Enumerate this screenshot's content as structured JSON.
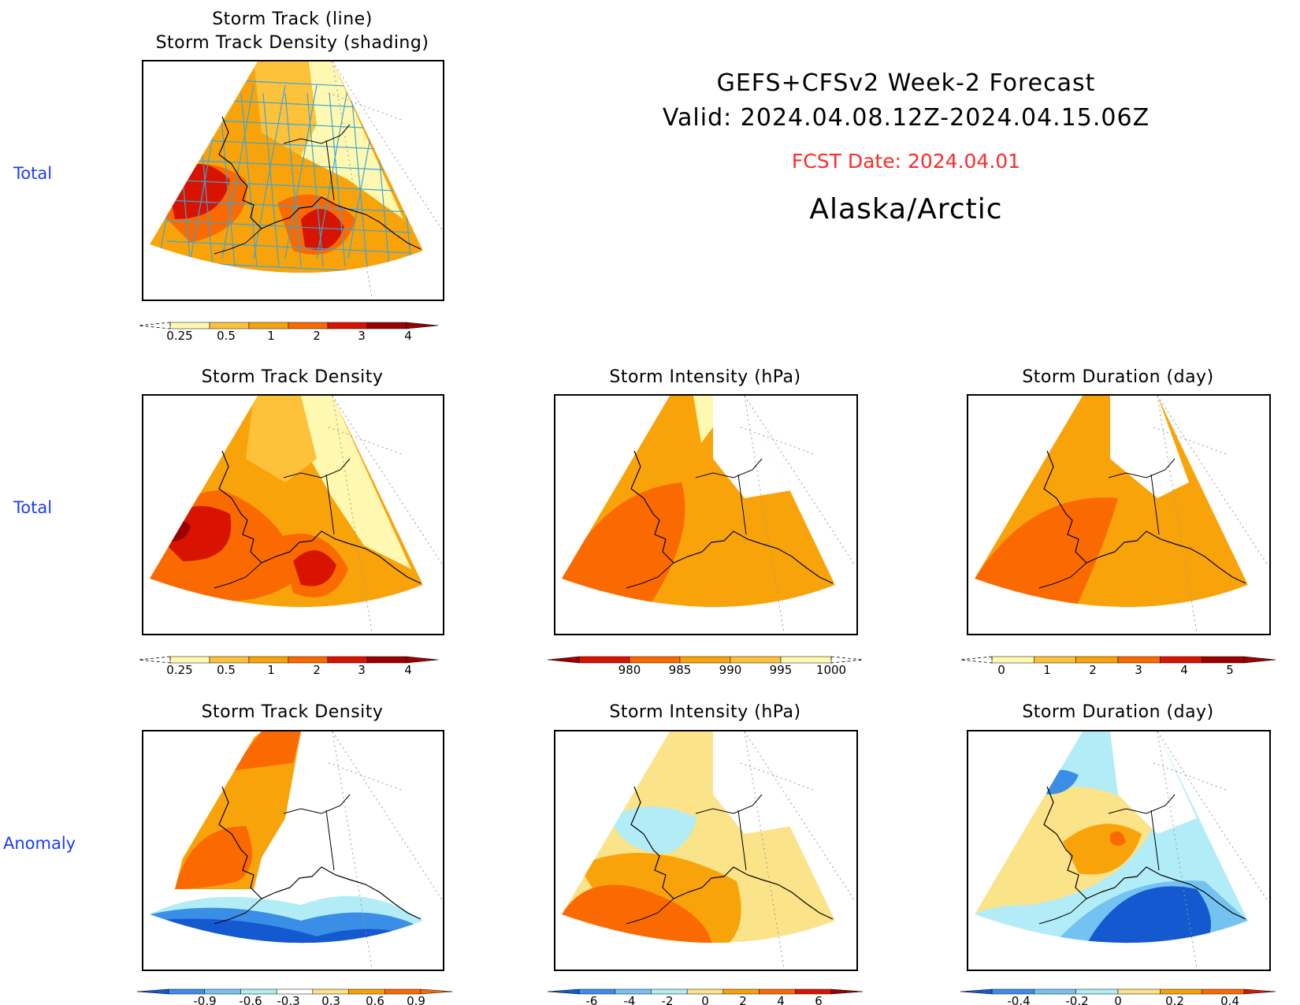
{
  "header": {
    "title": "GEFS+CFSv2 Week-2 Forecast",
    "valid": "Valid: 2024.04.08.12Z-2024.04.15.06Z",
    "fcst_date": "FCST Date: 2024.04.01",
    "region": "Alaska/Arctic"
  },
  "row_labels": {
    "row1": "Total",
    "row2": "Total",
    "row3": "Anomaly"
  },
  "panels": {
    "track": {
      "title_line1": "Storm Track (line)",
      "title_line2": "Storm Track Density (shading)"
    },
    "density_total": {
      "title": "Storm Track Density"
    },
    "intensity_total": {
      "title": "Storm Intensity (hPa)"
    },
    "duration_total": {
      "title": "Storm Duration (day)"
    },
    "density_anom": {
      "title": "Storm Track Density"
    },
    "intensity_anom": {
      "title": "Storm Intensity (hPa)"
    },
    "duration_anom": {
      "title": "Storm Duration (day)"
    }
  },
  "colors": {
    "c1": "#fff8b0",
    "c2": "#fdc23a",
    "c3": "#f9a30a",
    "c4": "#fb6a00",
    "c5": "#d81400",
    "c6": "#9a0000",
    "b1": "#b2ecf6",
    "b2": "#73c2f2",
    "b3": "#3a8ee6",
    "b4": "#1459d0",
    "y1": "#fbe38a",
    "track_line": "#3aa6d8"
  },
  "chart_data": [
    {
      "type": "heatmap",
      "name": "track",
      "colorbar_ticks": [
        "0.25",
        "0.5",
        "1",
        "2",
        "3",
        "4"
      ]
    },
    {
      "type": "heatmap",
      "name": "density_total",
      "colorbar_ticks": [
        "0.25",
        "0.5",
        "1",
        "2",
        "3",
        "4"
      ]
    },
    {
      "type": "heatmap",
      "name": "intensity_total",
      "colorbar_ticks": [
        "980",
        "985",
        "990",
        "995",
        "1000"
      ]
    },
    {
      "type": "heatmap",
      "name": "duration_total",
      "colorbar_ticks": [
        "0",
        "1",
        "2",
        "3",
        "4",
        "5"
      ]
    },
    {
      "type": "heatmap",
      "name": "density_anom",
      "colorbar_ticks": [
        "-0.9",
        "-0.6",
        "-0.3",
        "0.3",
        "0.6",
        "0.9"
      ]
    },
    {
      "type": "heatmap",
      "name": "intensity_anom",
      "colorbar_ticks": [
        "-6",
        "-4",
        "-2",
        "0",
        "2",
        "4",
        "6"
      ]
    },
    {
      "type": "heatmap",
      "name": "duration_anom",
      "colorbar_ticks": [
        "-0.4",
        "-0.2",
        "0",
        "0.2",
        "0.4"
      ]
    }
  ]
}
